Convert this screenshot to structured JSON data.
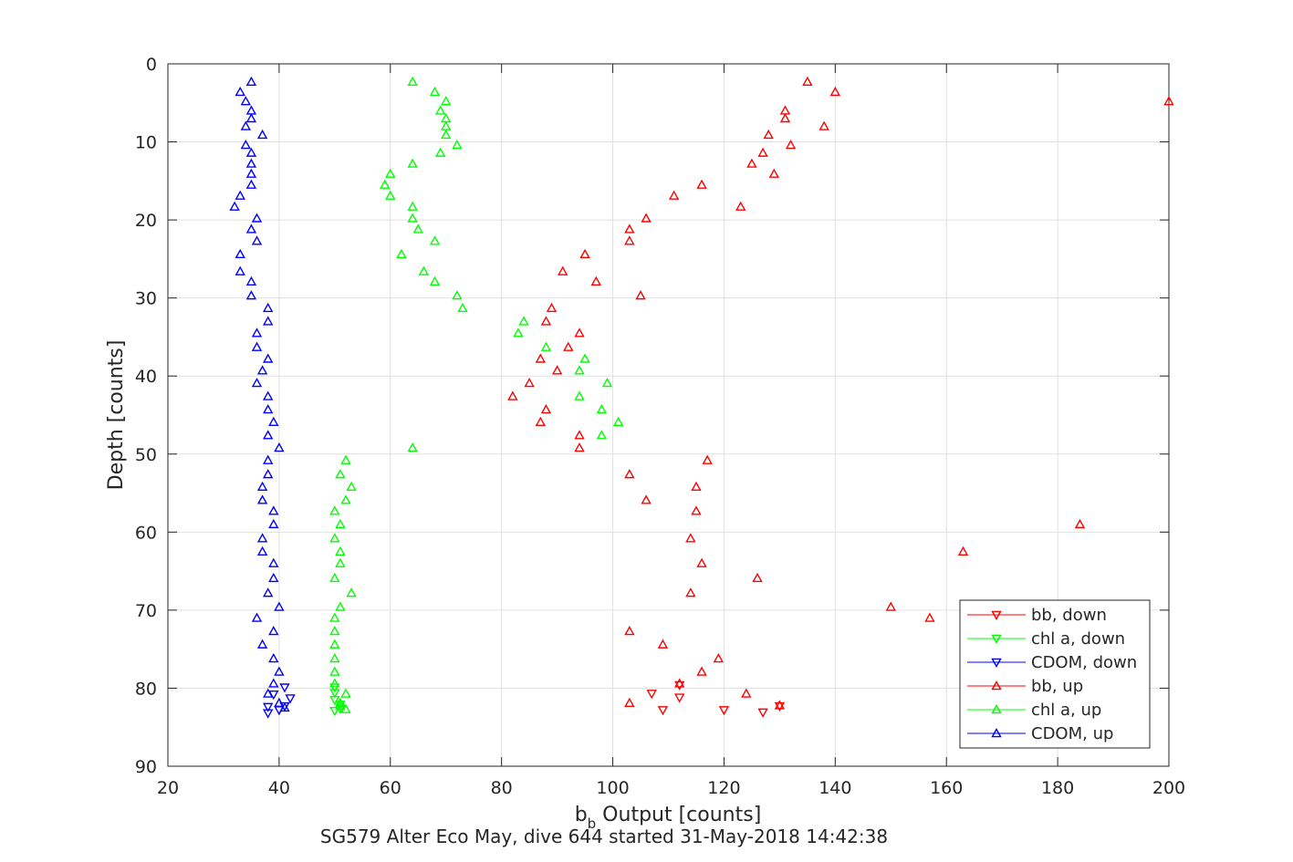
{
  "chart_data": {
    "type": "scatter",
    "title": "",
    "caption": "SG579 Alter Eco May, dive 644 started 31-May-2018 14:42:38",
    "xlabel_main": "b",
    "xlabel_sub": "b",
    "xlabel_rest": " Output [counts]",
    "ylabel": "Depth [counts]",
    "xlim": [
      20,
      200
    ],
    "ylim": [
      0,
      90
    ],
    "y_reversed": true,
    "grid": true,
    "legend_position": "bottom-right",
    "xticks": [
      "20",
      "40",
      "60",
      "80",
      "100",
      "120",
      "140",
      "160",
      "180",
      "200"
    ],
    "yticks": [
      "0",
      "10",
      "20",
      "30",
      "40",
      "50",
      "60",
      "70",
      "80",
      "90"
    ],
    "series": [
      {
        "name": "bb, down",
        "color": "#ff0000",
        "marker": "triangle-down",
        "points": [
          [
            107,
            80.7
          ],
          [
            112,
            79.6
          ],
          [
            112,
            81.2
          ],
          [
            109,
            82.8
          ],
          [
            120,
            82.8
          ],
          [
            127,
            83.1
          ],
          [
            130,
            82.3
          ]
        ]
      },
      {
        "name": "chl a, down",
        "color": "#00ff00",
        "marker": "triangle-down",
        "points": [
          [
            50,
            79.9
          ],
          [
            50,
            80.6
          ],
          [
            50,
            81.5
          ],
          [
            51,
            82.1
          ],
          [
            50,
            82.9
          ],
          [
            51,
            82.6
          ]
        ]
      },
      {
        "name": "CDOM, down",
        "color": "#0000ff",
        "marker": "triangle-down",
        "points": [
          [
            41,
            79.9
          ],
          [
            42,
            81.3
          ],
          [
            39,
            80.8
          ],
          [
            38,
            82.4
          ],
          [
            41,
            82.3
          ],
          [
            40,
            82.8
          ],
          [
            38,
            83.2
          ]
        ]
      },
      {
        "name": "bb, up",
        "color": "#ff0000",
        "marker": "triangle-up",
        "points": [
          [
            135,
            2.3
          ],
          [
            140,
            3.6
          ],
          [
            200,
            4.8
          ],
          [
            131,
            6.0
          ],
          [
            131,
            7.0
          ],
          [
            138,
            8.0
          ],
          [
            128,
            9.1
          ],
          [
            132,
            10.4
          ],
          [
            127,
            11.4
          ],
          [
            125,
            12.8
          ],
          [
            129,
            14.1
          ],
          [
            116,
            15.5
          ],
          [
            111,
            16.9
          ],
          [
            123,
            18.3
          ],
          [
            106,
            19.8
          ],
          [
            103,
            21.2
          ],
          [
            103,
            22.7
          ],
          [
            95,
            24.4
          ],
          [
            91,
            26.6
          ],
          [
            97,
            27.9
          ],
          [
            105,
            29.7
          ],
          [
            89,
            31.3
          ],
          [
            88,
            33.0
          ],
          [
            94,
            34.5
          ],
          [
            92,
            36.3
          ],
          [
            87,
            37.8
          ],
          [
            90,
            39.3
          ],
          [
            85,
            40.9
          ],
          [
            82,
            42.6
          ],
          [
            88,
            44.3
          ],
          [
            87,
            45.9
          ],
          [
            94,
            47.6
          ],
          [
            94,
            49.2
          ],
          [
            117,
            50.8
          ],
          [
            103,
            52.6
          ],
          [
            115,
            54.2
          ],
          [
            106,
            55.9
          ],
          [
            115,
            57.3
          ],
          [
            184,
            59.0
          ],
          [
            114,
            60.8
          ],
          [
            163,
            62.5
          ],
          [
            116,
            64.0
          ],
          [
            126,
            65.9
          ],
          [
            114,
            67.8
          ],
          [
            150,
            69.6
          ],
          [
            157,
            71.0
          ],
          [
            103,
            72.7
          ],
          [
            109,
            74.4
          ],
          [
            119,
            76.2
          ],
          [
            116,
            77.9
          ],
          [
            112,
            79.4
          ],
          [
            124,
            80.7
          ],
          [
            103,
            81.9
          ],
          [
            130,
            82.2
          ]
        ]
      },
      {
        "name": "chl a, up",
        "color": "#00ff00",
        "marker": "triangle-up",
        "points": [
          [
            64,
            2.3
          ],
          [
            68,
            3.6
          ],
          [
            70,
            4.8
          ],
          [
            69,
            6.0
          ],
          [
            70,
            7.0
          ],
          [
            70,
            8.0
          ],
          [
            70,
            9.1
          ],
          [
            72,
            10.4
          ],
          [
            69,
            11.4
          ],
          [
            64,
            12.8
          ],
          [
            60,
            14.1
          ],
          [
            59,
            15.5
          ],
          [
            60,
            16.9
          ],
          [
            64,
            18.3
          ],
          [
            64,
            19.8
          ],
          [
            65,
            21.2
          ],
          [
            68,
            22.7
          ],
          [
            62,
            24.4
          ],
          [
            66,
            26.6
          ],
          [
            68,
            27.9
          ],
          [
            72,
            29.7
          ],
          [
            73,
            31.3
          ],
          [
            84,
            33.0
          ],
          [
            83,
            34.5
          ],
          [
            88,
            36.3
          ],
          [
            95,
            37.8
          ],
          [
            94,
            39.3
          ],
          [
            99,
            40.9
          ],
          [
            94,
            42.6
          ],
          [
            98,
            44.3
          ],
          [
            101,
            45.9
          ],
          [
            98,
            47.6
          ],
          [
            64,
            49.2
          ],
          [
            52,
            50.8
          ],
          [
            51,
            52.6
          ],
          [
            53,
            54.2
          ],
          [
            52,
            55.9
          ],
          [
            50,
            57.3
          ],
          [
            51,
            59.0
          ],
          [
            50,
            60.8
          ],
          [
            51,
            62.5
          ],
          [
            51,
            64.0
          ],
          [
            50,
            65.9
          ],
          [
            53,
            67.8
          ],
          [
            51,
            69.6
          ],
          [
            50,
            71.0
          ],
          [
            50,
            72.7
          ],
          [
            50,
            74.4
          ],
          [
            50,
            76.2
          ],
          [
            50,
            77.9
          ],
          [
            50,
            79.4
          ],
          [
            52,
            80.7
          ],
          [
            51,
            81.9
          ],
          [
            52,
            82.7
          ],
          [
            51,
            82.3
          ]
        ]
      },
      {
        "name": "CDOM, up",
        "color": "#0000ff",
        "marker": "triangle-up",
        "points": [
          [
            35,
            2.3
          ],
          [
            33,
            3.6
          ],
          [
            34,
            4.8
          ],
          [
            35,
            6.0
          ],
          [
            35,
            7.0
          ],
          [
            34,
            8.0
          ],
          [
            37,
            9.1
          ],
          [
            34,
            10.4
          ],
          [
            35,
            11.4
          ],
          [
            35,
            12.8
          ],
          [
            35,
            14.1
          ],
          [
            35,
            15.5
          ],
          [
            33,
            16.9
          ],
          [
            32,
            18.3
          ],
          [
            36,
            19.8
          ],
          [
            35,
            21.2
          ],
          [
            36,
            22.7
          ],
          [
            33,
            24.4
          ],
          [
            33,
            26.6
          ],
          [
            35,
            27.9
          ],
          [
            35,
            29.7
          ],
          [
            38,
            31.3
          ],
          [
            38,
            33.0
          ],
          [
            36,
            34.5
          ],
          [
            36,
            36.3
          ],
          [
            38,
            37.8
          ],
          [
            37,
            39.3
          ],
          [
            36,
            40.9
          ],
          [
            38,
            42.6
          ],
          [
            38,
            44.3
          ],
          [
            39,
            45.9
          ],
          [
            38,
            47.6
          ],
          [
            40,
            49.2
          ],
          [
            38,
            50.8
          ],
          [
            38,
            52.6
          ],
          [
            37,
            54.2
          ],
          [
            37,
            55.9
          ],
          [
            39,
            57.3
          ],
          [
            39,
            59.0
          ],
          [
            37,
            60.8
          ],
          [
            37,
            62.5
          ],
          [
            39,
            64.0
          ],
          [
            39,
            65.9
          ],
          [
            38,
            67.8
          ],
          [
            40,
            69.6
          ],
          [
            36,
            71.0
          ],
          [
            39,
            72.7
          ],
          [
            37,
            74.4
          ],
          [
            39,
            76.2
          ],
          [
            40,
            77.9
          ],
          [
            39,
            79.4
          ],
          [
            38,
            80.7
          ],
          [
            40,
            81.9
          ],
          [
            41,
            82.5
          ]
        ]
      }
    ]
  }
}
